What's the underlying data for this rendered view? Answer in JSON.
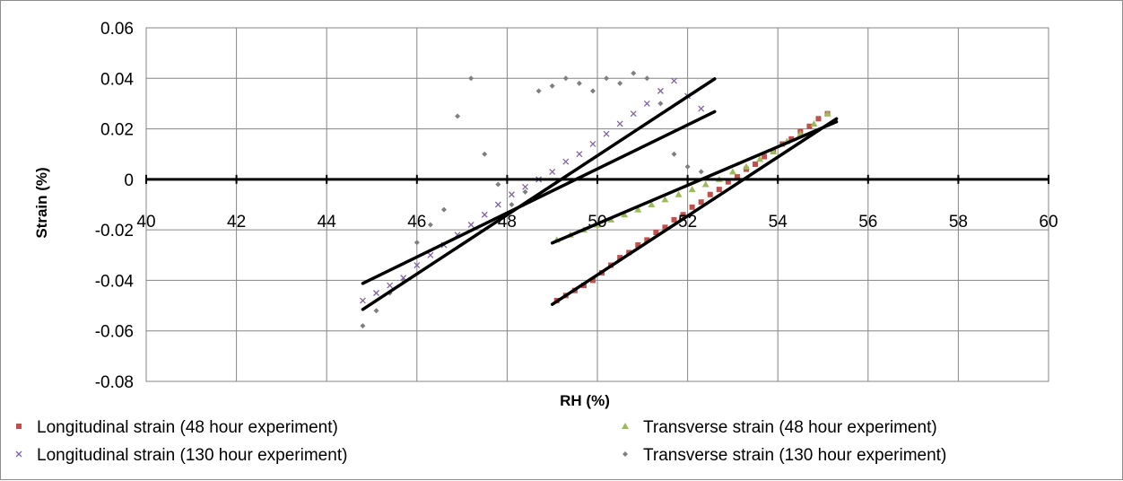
{
  "chart_data": {
    "type": "scatter",
    "title": "",
    "xlabel": "RH (%)",
    "ylabel": "Strain (%)",
    "xlim": [
      40,
      60
    ],
    "ylim": [
      -0.08,
      0.06
    ],
    "x_ticks": [
      "40",
      "42",
      "44",
      "46",
      "48",
      "50",
      "52",
      "54",
      "56",
      "58",
      "60"
    ],
    "y_ticks": [
      "0.06",
      "0.04",
      "0.02",
      "0",
      "-0.02",
      "-0.04",
      "-0.06",
      "-0.08"
    ],
    "x_tick_values": [
      40,
      42,
      44,
      46,
      48,
      50,
      52,
      54,
      56,
      58,
      60
    ],
    "y_tick_values": [
      0.06,
      0.04,
      0.02,
      0,
      -0.02,
      -0.04,
      -0.06,
      -0.08
    ],
    "grid": true,
    "legend_position": "bottom",
    "series": [
      {
        "name": "Longitudinal strain (48 hour experiment)",
        "marker": "square",
        "color": "#c0504d",
        "x": [
          49.1,
          49.3,
          49.5,
          49.7,
          49.9,
          50.1,
          50.3,
          50.5,
          50.7,
          50.9,
          51.1,
          51.3,
          51.5,
          51.7,
          51.9,
          52.1,
          52.3,
          52.5,
          52.7,
          52.9,
          53.1,
          53.3,
          53.5,
          53.7,
          53.9,
          54.1,
          54.3,
          54.5,
          54.7,
          54.9,
          55.1
        ],
        "y": [
          -0.048,
          -0.046,
          -0.044,
          -0.042,
          -0.04,
          -0.037,
          -0.034,
          -0.031,
          -0.029,
          -0.026,
          -0.024,
          -0.021,
          -0.019,
          -0.016,
          -0.014,
          -0.011,
          -0.009,
          -0.006,
          -0.004,
          -0.001,
          0.001,
          0.004,
          0.006,
          0.009,
          0.011,
          0.014,
          0.016,
          0.019,
          0.021,
          0.024,
          0.026
        ]
      },
      {
        "name": "Transverse strain (48 hour experiment)",
        "marker": "triangle",
        "color": "#9bbb59",
        "x": [
          49.1,
          49.4,
          49.7,
          50.0,
          50.3,
          50.6,
          50.9,
          51.2,
          51.5,
          51.8,
          52.1,
          52.4,
          52.7,
          53.0,
          53.3,
          53.6,
          53.9,
          54.2,
          54.5,
          54.8,
          55.1
        ],
        "y": [
          -0.024,
          -0.022,
          -0.02,
          -0.018,
          -0.016,
          -0.014,
          -0.012,
          -0.01,
          -0.008,
          -0.006,
          -0.004,
          -0.002,
          0.0,
          0.003,
          0.005,
          0.008,
          0.011,
          0.015,
          0.018,
          0.022,
          0.026
        ]
      },
      {
        "name": "Longitudinal strain (130 hour experiment)",
        "marker": "x",
        "color": "#8064a2",
        "x": [
          44.8,
          45.1,
          45.4,
          45.7,
          46.0,
          46.3,
          46.6,
          46.9,
          47.2,
          47.5,
          47.8,
          48.1,
          48.4,
          48.7,
          49.0,
          49.3,
          49.6,
          49.9,
          50.2,
          50.5,
          50.8,
          51.1,
          51.4,
          51.7,
          52.0,
          52.3
        ],
        "y": [
          -0.048,
          -0.045,
          -0.042,
          -0.039,
          -0.034,
          -0.03,
          -0.026,
          -0.022,
          -0.018,
          -0.014,
          -0.01,
          -0.006,
          -0.003,
          0.0,
          0.003,
          0.007,
          0.01,
          0.014,
          0.018,
          0.022,
          0.026,
          0.03,
          0.035,
          0.039,
          0.033,
          0.028
        ]
      },
      {
        "name": "Transverse strain (130 hour experiment)",
        "marker": "diamond",
        "color": "#7f7f7f",
        "x": [
          44.8,
          45.1,
          45.4,
          45.7,
          46.0,
          46.3,
          46.6,
          46.9,
          47.2,
          47.5,
          47.8,
          48.1,
          48.4,
          48.7,
          49.0,
          49.3,
          49.6,
          49.9,
          50.2,
          50.5,
          50.8,
          51.1,
          51.4,
          51.7,
          52.0,
          52.3
        ],
        "y": [
          -0.058,
          -0.052,
          -0.045,
          -0.04,
          -0.025,
          -0.018,
          -0.012,
          0.025,
          0.04,
          0.01,
          -0.002,
          -0.01,
          -0.005,
          0.035,
          0.037,
          0.04,
          0.038,
          0.035,
          0.04,
          0.038,
          0.042,
          0.04,
          0.03,
          0.01,
          0.005,
          0.003
        ]
      }
    ],
    "trendlines": [
      {
        "x": [
          44.8,
          52.6
        ],
        "y": [
          -0.0515,
          0.0398
        ]
      },
      {
        "x": [
          44.8,
          52.6
        ],
        "y": [
          -0.0412,
          0.0268
        ]
      },
      {
        "x": [
          49.0,
          55.3
        ],
        "y": [
          -0.0495,
          0.024
        ]
      },
      {
        "x": [
          49.0,
          55.3
        ],
        "y": [
          -0.0252,
          0.0228
        ]
      }
    ]
  }
}
